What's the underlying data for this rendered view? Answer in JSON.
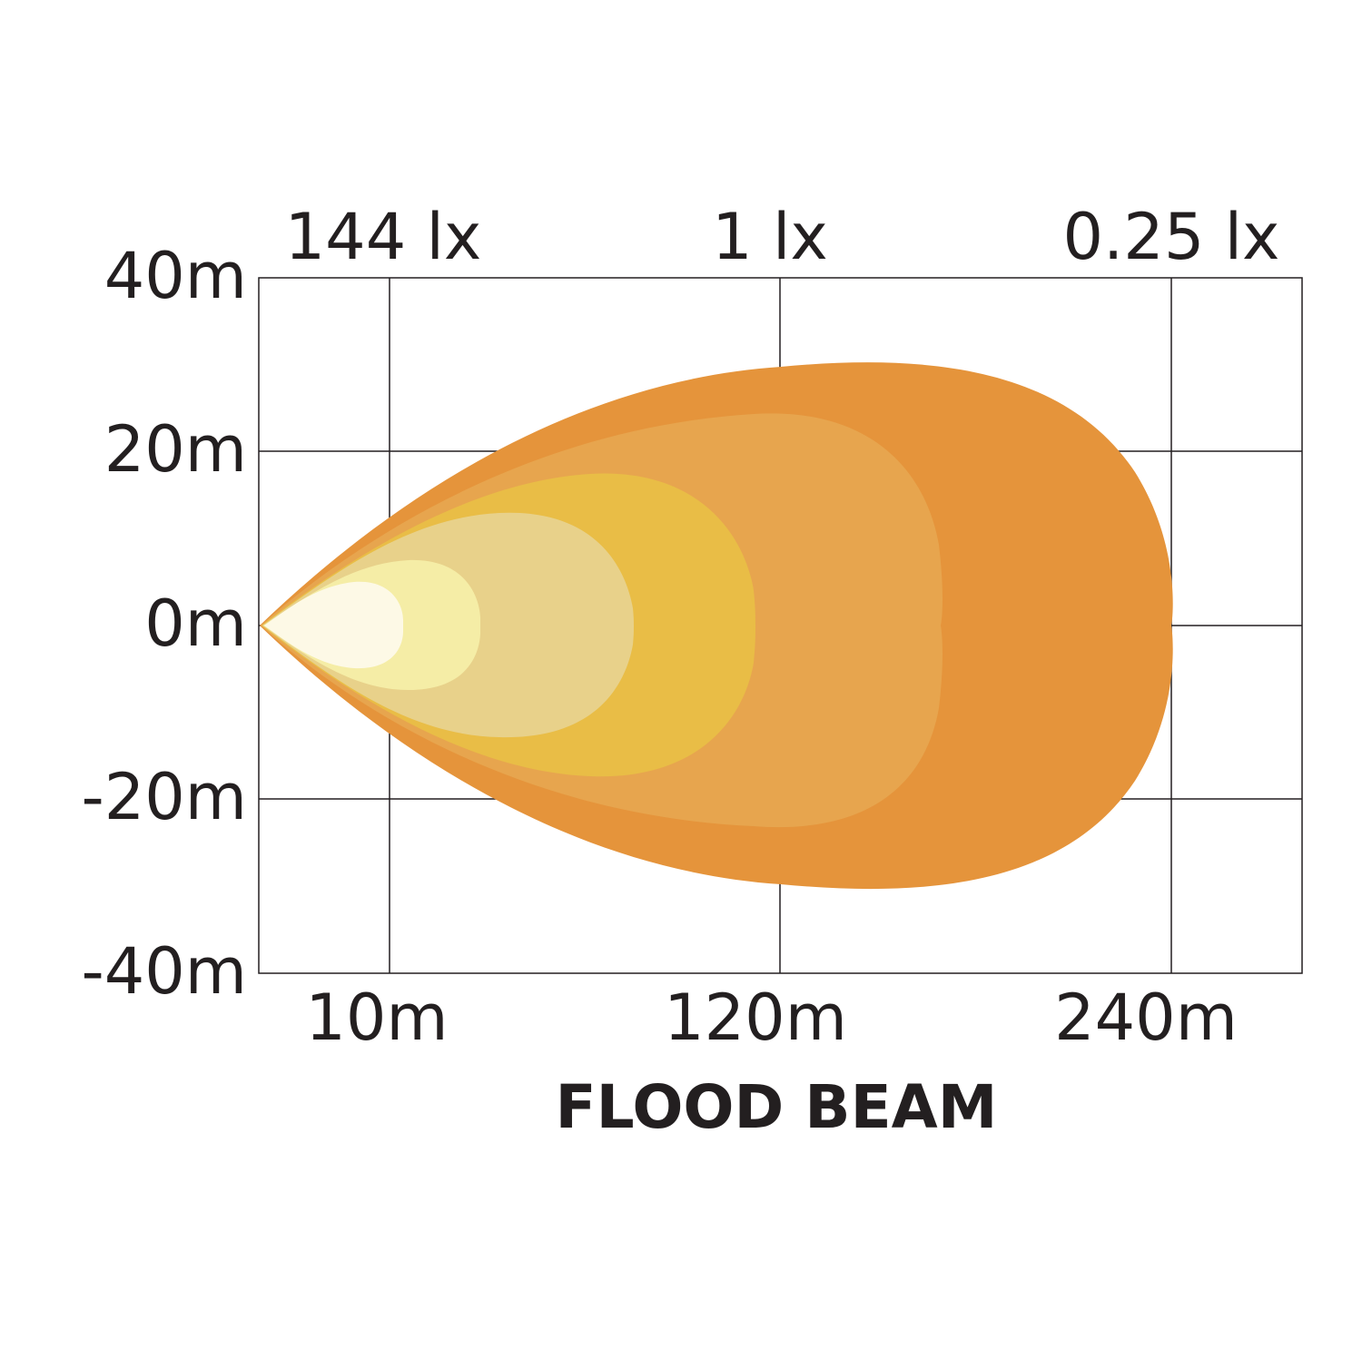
{
  "chart_data": {
    "type": "area",
    "title": "FLOOD BEAM",
    "y_ticks": [
      "40m",
      "20m",
      "0m",
      "-20m",
      "-40m"
    ],
    "y_values": [
      40,
      20,
      0,
      -20,
      -40
    ],
    "ylim": [
      -40,
      40
    ],
    "x_ticks": [
      "10m",
      "120m",
      "240m"
    ],
    "top_labels": [
      "144 lx",
      "1 lx",
      "0.25 lx"
    ],
    "grid": true,
    "beam_zones": [
      {
        "color": "#e5943b",
        "reach_m": 240,
        "half_width_m": 31
      },
      {
        "color": "#e7a54e",
        "reach_m": 180,
        "half_width_m": 24
      },
      {
        "color": "#e9bd46",
        "reach_m": 130,
        "half_width_m": 17
      },
      {
        "color": "#e8d18a",
        "reach_m": 90,
        "half_width_m": 13
      },
      {
        "color": "#f5eda6",
        "reach_m": 55,
        "half_width_m": 7.5
      },
      {
        "color": "#fdf9e6",
        "reach_m": 35,
        "half_width_m": 5
      }
    ]
  }
}
